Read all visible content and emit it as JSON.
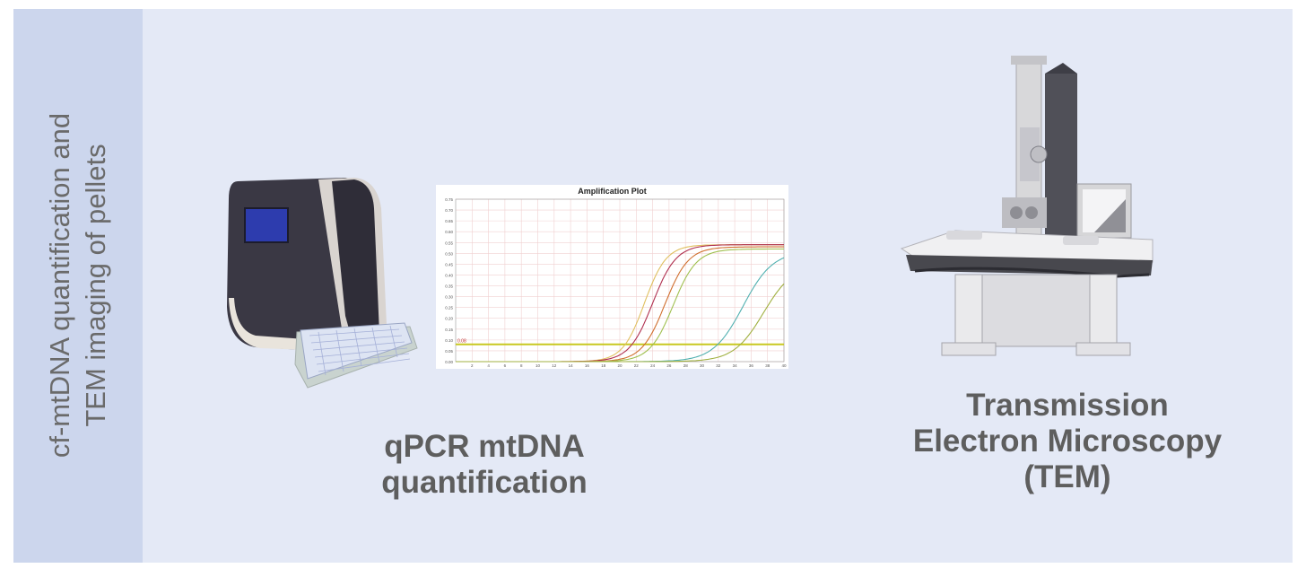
{
  "side_band": {
    "lines": [
      "cf-mtDNA quantification and",
      "TEM imaging of pellets"
    ]
  },
  "qpcr": {
    "caption_lines": [
      "qPCR mtDNA",
      "quantification"
    ],
    "icon": "qpcr-machine-icon",
    "plate_icon": "well-plate-icon"
  },
  "tem": {
    "caption_lines": [
      "Transmission",
      "Electron Microscopy",
      "(TEM)"
    ],
    "icon": "electron-microscope-icon"
  },
  "colors": {
    "background": "#e4e9f6",
    "side_band": "#ccd6ed",
    "caption_text": "#5e5e5e",
    "threshold_line": "#c8c820"
  },
  "chart_data": {
    "type": "line",
    "title": "Amplification Plot",
    "xlabel": "",
    "ylabel": "",
    "x_ticks": [
      "2",
      "4",
      "6",
      "8",
      "10",
      "12",
      "14",
      "16",
      "18",
      "20",
      "22",
      "24",
      "26",
      "28",
      "30",
      "32",
      "34",
      "36",
      "38",
      "40"
    ],
    "y_ticks": [
      "0.00",
      "0.05",
      "0.10",
      "0.15",
      "0.20",
      "0.25",
      "0.30",
      "0.35",
      "0.40",
      "0.45",
      "0.50",
      "0.55",
      "0.60",
      "0.65",
      "0.70",
      "0.75"
    ],
    "xlim": [
      0,
      40
    ],
    "ylim": [
      0,
      0.75
    ],
    "threshold": {
      "label": "0.08",
      "value": 0.08
    },
    "series": [
      {
        "color": "#e0c060",
        "midpoint": 23,
        "plateau": 0.54,
        "slope": 0.75
      },
      {
        "color": "#b03050",
        "midpoint": 24,
        "plateau": 0.54,
        "slope": 0.7
      },
      {
        "color": "#d07030",
        "midpoint": 25.5,
        "plateau": 0.53,
        "slope": 0.7
      },
      {
        "color": "#a0c050",
        "midpoint": 26.5,
        "plateau": 0.52,
        "slope": 0.7
      },
      {
        "color": "#50b0b0",
        "midpoint": 35,
        "plateau": 0.51,
        "slope": 0.55
      },
      {
        "color": "#a0b040",
        "midpoint": 37.5,
        "plateau": 0.45,
        "slope": 0.55
      }
    ]
  }
}
